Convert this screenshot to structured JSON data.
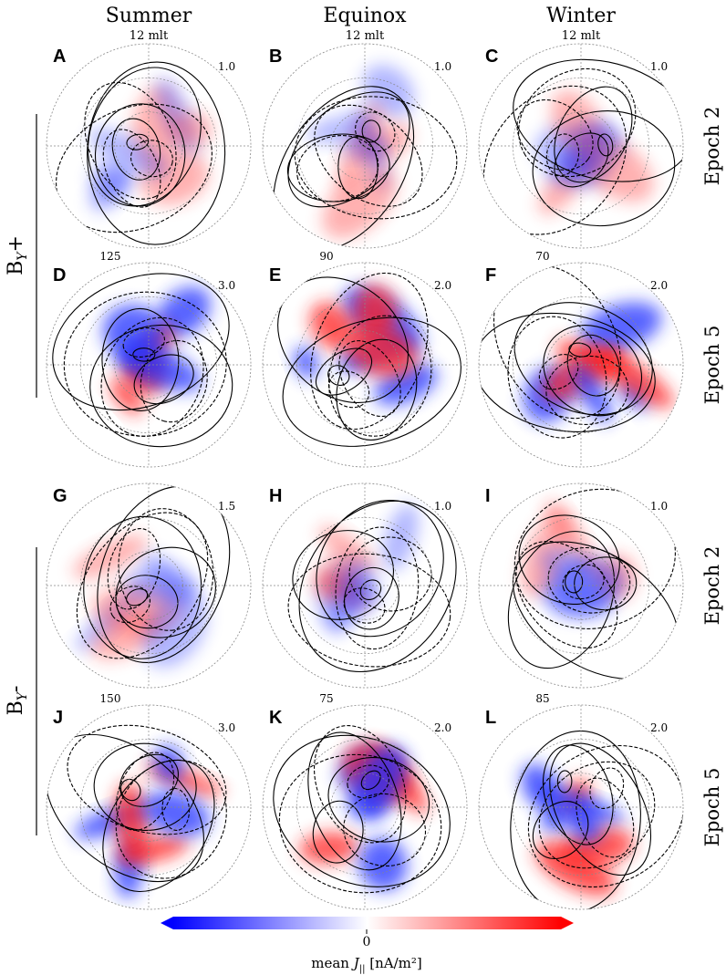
{
  "figure": {
    "columns": [
      "Summer",
      "Equinox",
      "Winter"
    ],
    "rows": [
      "Epoch 2",
      "Epoch 5",
      "Epoch 2",
      "Epoch 5"
    ],
    "groups": [
      {
        "main": "B",
        "sub": "Y",
        "tail": "+"
      },
      {
        "main": "B",
        "sub": "Y",
        "tail": "-"
      }
    ],
    "panels": [
      {
        "letter": "A",
        "top": "12 mlt",
        "scale": "1.0"
      },
      {
        "letter": "B",
        "top": "12 mlt",
        "scale": "1.0"
      },
      {
        "letter": "C",
        "top": "12 mlt",
        "scale": "1.0"
      },
      {
        "letter": "D",
        "count": "125",
        "scale": "3.0"
      },
      {
        "letter": "E",
        "count": "90",
        "scale": "2.0"
      },
      {
        "letter": "F",
        "count": "70",
        "scale": "2.0"
      },
      {
        "letter": "G",
        "scale": "1.5"
      },
      {
        "letter": "H",
        "scale": "1.0"
      },
      {
        "letter": "I",
        "scale": "1.0"
      },
      {
        "letter": "J",
        "count": "150",
        "scale": "3.0"
      },
      {
        "letter": "K",
        "count": "75",
        "scale": "2.0"
      },
      {
        "letter": "L",
        "count": "85",
        "scale": "2.0"
      }
    ],
    "colorbar": {
      "tick": "0",
      "prefix": "mean",
      "symbol": "J",
      "symbol_sub": "||",
      "unit": "[nA/m²]"
    }
  }
}
